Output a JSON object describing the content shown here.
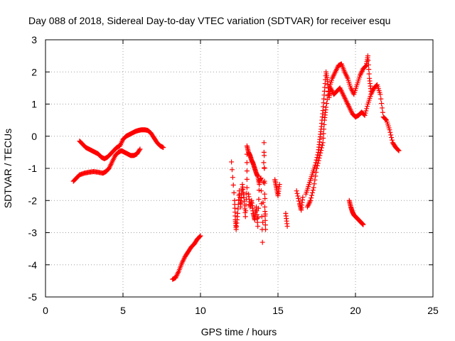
{
  "chart_data": {
    "type": "scatter",
    "title": "Day 088 of 2018, Sidereal Day-to-day VTEC variation (SDTVAR) for receiver esqu",
    "xlabel": "GPS time / hours",
    "ylabel": "SDTVAR / TECUs",
    "xlim": [
      0,
      25
    ],
    "ylim": [
      -5,
      3
    ],
    "x_ticks": [
      0,
      5,
      10,
      15,
      20,
      25
    ],
    "y_ticks": [
      -5,
      -4,
      -3,
      -2,
      -1,
      0,
      1,
      2,
      3
    ],
    "x_tick_labels": [
      "0",
      "5",
      "10",
      "15",
      "20",
      "25"
    ],
    "y_tick_labels": [
      "-5",
      "-4",
      "-3",
      "-2",
      "-1",
      "0",
      "1",
      "2",
      "3"
    ],
    "grid": true,
    "legend": "none",
    "marker": "+",
    "color": "#ff0000",
    "series": [
      {
        "values": [
          [
            1.8,
            -1.4
          ],
          [
            2.0,
            -1.3
          ],
          [
            2.2,
            -1.2
          ],
          [
            2.5,
            -1.15
          ],
          [
            2.8,
            -1.12
          ],
          [
            3.1,
            -1.1
          ],
          [
            3.4,
            -1.12
          ],
          [
            3.7,
            -1.15
          ],
          [
            3.9,
            -1.1
          ],
          [
            4.1,
            -1.0
          ],
          [
            4.3,
            -0.8
          ],
          [
            4.5,
            -0.6
          ],
          [
            4.7,
            -0.5
          ],
          [
            4.9,
            -0.45
          ],
          [
            5.1,
            -0.5
          ],
          [
            5.3,
            -0.55
          ],
          [
            5.5,
            -0.6
          ],
          [
            5.7,
            -0.6
          ],
          [
            5.9,
            -0.55
          ],
          [
            6.1,
            -0.4
          ]
        ]
      },
      {
        "values": [
          [
            2.2,
            -0.15
          ],
          [
            2.4,
            -0.25
          ],
          [
            2.6,
            -0.35
          ],
          [
            2.8,
            -0.4
          ],
          [
            3.0,
            -0.45
          ],
          [
            3.2,
            -0.5
          ],
          [
            3.4,
            -0.55
          ],
          [
            3.6,
            -0.65
          ],
          [
            3.8,
            -0.7
          ],
          [
            4.0,
            -0.65
          ],
          [
            4.2,
            -0.55
          ],
          [
            4.4,
            -0.45
          ],
          [
            4.6,
            -0.35
          ],
          [
            4.8,
            -0.3
          ],
          [
            5.0,
            -0.1
          ],
          [
            5.2,
            0.0
          ],
          [
            5.4,
            0.05
          ],
          [
            5.6,
            0.1
          ],
          [
            5.8,
            0.15
          ],
          [
            6.0,
            0.18
          ],
          [
            6.2,
            0.2
          ],
          [
            6.4,
            0.2
          ],
          [
            6.6,
            0.18
          ],
          [
            6.8,
            0.1
          ],
          [
            7.0,
            -0.05
          ],
          [
            7.2,
            -0.2
          ],
          [
            7.4,
            -0.3
          ],
          [
            7.6,
            -0.35
          ]
        ]
      },
      {
        "values": [
          [
            8.2,
            -4.45
          ],
          [
            8.4,
            -4.4
          ],
          [
            8.6,
            -4.2
          ],
          [
            8.8,
            -3.95
          ],
          [
            9.0,
            -3.75
          ],
          [
            9.2,
            -3.6
          ],
          [
            9.4,
            -3.45
          ],
          [
            9.6,
            -3.35
          ],
          [
            9.8,
            -3.2
          ],
          [
            10.0,
            -3.1
          ]
        ]
      },
      {
        "values": [
          [
            12.0,
            -0.8
          ],
          [
            12.2,
            -2.0
          ],
          [
            12.25,
            -2.6
          ],
          [
            12.3,
            -2.9
          ],
          [
            12.4,
            -2.4
          ],
          [
            12.5,
            -1.7
          ],
          [
            12.6,
            -2.2
          ],
          [
            12.7,
            -1.5
          ],
          [
            12.8,
            -1.9
          ],
          [
            12.9,
            -2.5
          ],
          [
            13.0,
            -1.6
          ],
          [
            13.0,
            -0.3
          ],
          [
            13.1,
            -0.5
          ],
          [
            13.2,
            -0.6
          ],
          [
            13.3,
            -0.75
          ],
          [
            13.4,
            -0.85
          ],
          [
            13.5,
            -1.0
          ],
          [
            13.6,
            -1.15
          ],
          [
            13.7,
            -1.25
          ],
          [
            13.8,
            -1.5
          ],
          [
            13.1,
            -1.8
          ],
          [
            13.2,
            -2.2
          ],
          [
            13.3,
            -2.0
          ],
          [
            13.4,
            -2.4
          ],
          [
            13.5,
            -2.6
          ],
          [
            13.6,
            -2.2
          ],
          [
            13.7,
            -2.8
          ],
          [
            13.8,
            -1.4
          ],
          [
            13.9,
            -1.3
          ],
          [
            14.0,
            -3.3
          ],
          [
            14.1,
            -0.2
          ],
          [
            14.15,
            -2.2
          ],
          [
            14.2,
            -2.9
          ],
          [
            14.1,
            -0.5
          ],
          [
            14.8,
            -1.35
          ],
          [
            14.9,
            -1.6
          ],
          [
            15.0,
            -1.85
          ],
          [
            15.1,
            -1.5
          ],
          [
            15.5,
            -2.4
          ],
          [
            15.6,
            -2.8
          ],
          [
            16.2,
            -1.7
          ],
          [
            16.4,
            -2.1
          ],
          [
            16.5,
            -2.3
          ],
          [
            16.6,
            -1.9
          ]
        ]
      },
      {
        "values": [
          [
            16.8,
            -1.8
          ],
          [
            17.0,
            -1.5
          ],
          [
            17.2,
            -1.2
          ],
          [
            17.4,
            -0.9
          ],
          [
            17.6,
            -0.5
          ],
          [
            17.7,
            -0.1
          ],
          [
            17.8,
            0.3
          ],
          [
            17.9,
            0.8
          ],
          [
            18.0,
            1.4
          ],
          [
            18.1,
            2.0
          ],
          [
            18.2,
            1.7
          ],
          [
            18.3,
            1.2
          ],
          [
            18.4,
            1.5
          ],
          [
            18.6,
            1.3
          ],
          [
            18.8,
            1.4
          ],
          [
            19.0,
            1.5
          ],
          [
            19.2,
            1.3
          ],
          [
            19.4,
            1.1
          ],
          [
            19.6,
            0.9
          ],
          [
            19.8,
            0.7
          ],
          [
            20.0,
            0.6
          ],
          [
            20.2,
            0.65
          ],
          [
            20.4,
            0.75
          ],
          [
            20.6,
            0.65
          ],
          [
            20.8,
            1.0
          ],
          [
            21.0,
            1.3
          ],
          [
            21.2,
            1.5
          ],
          [
            21.4,
            1.6
          ],
          [
            21.6,
            1.3
          ],
          [
            21.8,
            0.6
          ],
          [
            22.0,
            0.5
          ],
          [
            22.2,
            0.2
          ],
          [
            22.4,
            -0.2
          ],
          [
            22.6,
            -0.35
          ],
          [
            22.8,
            -0.45
          ]
        ]
      },
      {
        "values": [
          [
            16.9,
            -2.2
          ],
          [
            17.1,
            -2.0
          ],
          [
            17.3,
            -1.6
          ],
          [
            17.5,
            -1.0
          ],
          [
            17.7,
            -0.6
          ],
          [
            17.9,
            -0.2
          ],
          [
            18.0,
            0.5
          ],
          [
            18.1,
            0.9
          ],
          [
            18.3,
            1.5
          ],
          [
            18.5,
            1.8
          ],
          [
            18.7,
            2.0
          ],
          [
            18.9,
            2.2
          ],
          [
            19.1,
            2.25
          ],
          [
            19.3,
            2.0
          ],
          [
            19.5,
            1.8
          ],
          [
            19.7,
            1.5
          ],
          [
            19.9,
            1.3
          ],
          [
            20.1,
            1.6
          ],
          [
            20.3,
            1.9
          ],
          [
            20.5,
            2.1
          ],
          [
            20.7,
            2.2
          ],
          [
            20.8,
            2.5
          ],
          [
            20.9,
            1.8
          ],
          [
            21.0,
            1.4
          ]
        ]
      },
      {
        "values": [
          [
            19.6,
            -2.0
          ],
          [
            19.7,
            -2.2
          ],
          [
            19.8,
            -2.35
          ],
          [
            19.9,
            -2.45
          ],
          [
            20.0,
            -2.5
          ],
          [
            20.1,
            -2.55
          ],
          [
            20.2,
            -2.6
          ],
          [
            20.3,
            -2.65
          ],
          [
            20.4,
            -2.7
          ],
          [
            20.5,
            -2.75
          ]
        ]
      }
    ]
  }
}
